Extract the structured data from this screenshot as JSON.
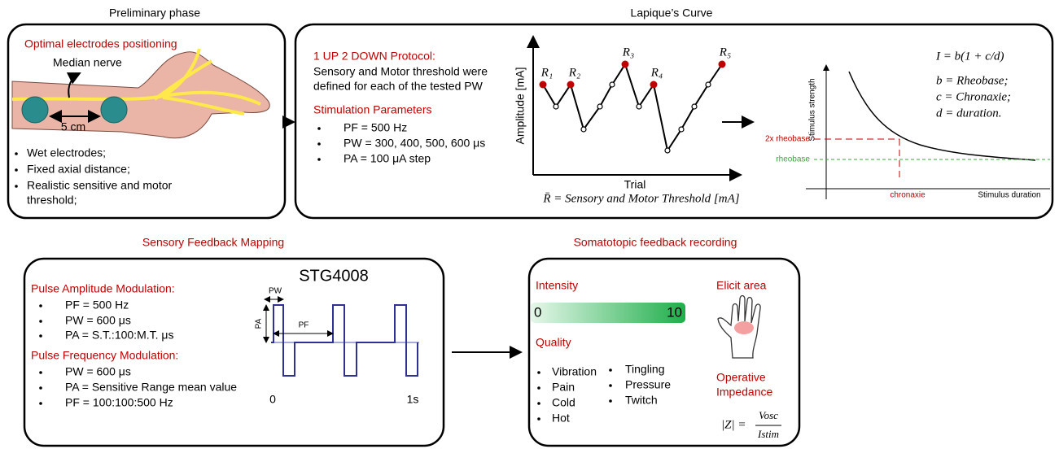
{
  "preliminary": {
    "title": "Preliminary phase",
    "heading": "Optimal electrodes positioning",
    "nerve_label": "Median nerve",
    "distance_label": "5 cm",
    "bullets": [
      "Wet electrodes;",
      "Fixed axial distance;",
      "Realistic sensitive and motor",
      "threshold;"
    ]
  },
  "lapicque": {
    "title": "Lapique’s Curve",
    "protocol_heading": "1 UP 2 DOWN Protocol:",
    "protocol_text": [
      "Sensory and Motor threshold were",
      "defined for each of the tested PW"
    ],
    "params_heading": "Stimulation Parameters",
    "params": [
      "PF = 500 Hz",
      "PW = 300, 400, 500, 600 μs",
      "PA = 100  μA step"
    ],
    "staircase": {
      "y_label": "Amplitude [mA]",
      "x_label": "Trial",
      "reversals": [
        "R₁",
        "R₂",
        "R₃",
        "R₄",
        "R₅"
      ],
      "caption": "R̄ = Sensory and Motor Threshold [mA]"
    },
    "curve": {
      "y_label": "Stimulus strength",
      "x_label": "Stimulus duration",
      "double_rheobase": "2x rheobase",
      "rheobase": "rheobase",
      "chronaxie": "chronaxie"
    },
    "formula": {
      "main": "I = b(1 + c/d)",
      "lines": [
        "b = Rheobase;",
        "c = Chronaxie;",
        "d = duration."
      ]
    }
  },
  "mapping": {
    "title": "Sensory Feedback Mapping",
    "device": "STG4008",
    "amplitude_heading": "Pulse Amplitude Modulation:",
    "amplitude_items": [
      "PF = 500 Hz",
      "PW = 600 μs",
      "PA = S.T.:100:M.T. μs"
    ],
    "frequency_heading": "Pulse Frequency Modulation:",
    "frequency_items": [
      "PW = 600 μs",
      "PA = Sensitive Range mean value",
      "PF = 100:100:500 Hz"
    ],
    "waveform": {
      "pw": "PW",
      "pa": "PA",
      "pf": "PF",
      "start": "0",
      "end": "1s"
    }
  },
  "recording": {
    "title": "Somatotopic feedback recording",
    "intensity": "Intensity",
    "scale_min": "0",
    "scale_max": "10",
    "quality": "Quality",
    "quality_items_left": [
      "Vibration",
      "Pain",
      "Cold",
      "Hot"
    ],
    "quality_items_right": [
      "Tingling",
      "Pressure",
      "Twitch"
    ],
    "elicit": "Elicit area",
    "impedance_heading": [
      "Operative",
      "Impedance"
    ],
    "impedance_formula": {
      "lhs": "|Z| =",
      "numerator": "Vosc",
      "denominator": "Istim"
    }
  }
}
